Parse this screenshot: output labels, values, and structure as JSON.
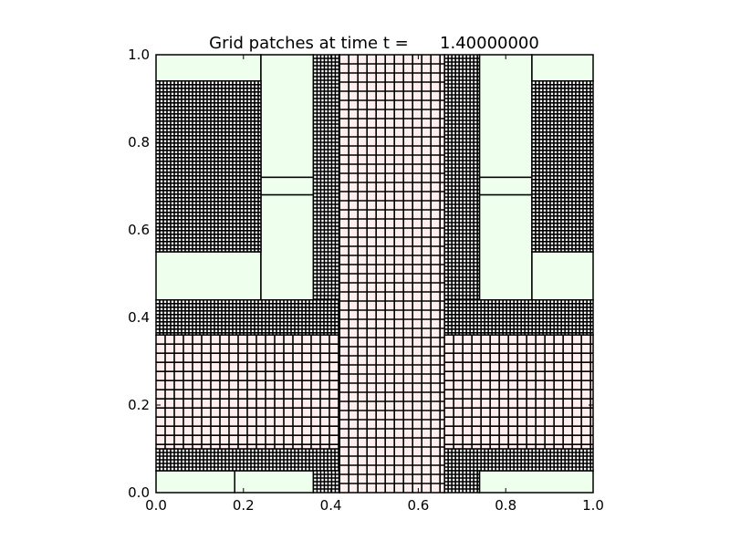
{
  "chart_data": {
    "type": "other",
    "title": "Grid patches at time t =      1.40000000",
    "xlabel": "",
    "ylabel": "",
    "xlim": [
      0.0,
      1.0
    ],
    "ylim": [
      0.0,
      1.0
    ],
    "xticks": [
      "0.0",
      "0.2",
      "0.4",
      "0.6",
      "0.8",
      "1.0"
    ],
    "yticks": [
      "0.0",
      "0.2",
      "0.4",
      "0.6",
      "0.8",
      "1.0"
    ],
    "grid": false,
    "colors": {
      "coarse_fill": "#eeffee",
      "medium_fill": "#ffffff",
      "fine_fill": "#ffeeee",
      "cell_line": "#000000"
    },
    "patches": [
      {
        "level": 1,
        "x0": 0.0,
        "x1": 0.24,
        "y0": 0.94,
        "y1": 1.0
      },
      {
        "level": 1,
        "x0": 0.0,
        "x1": 0.24,
        "y0": 0.44,
        "y1": 0.55
      },
      {
        "level": 1,
        "x0": 0.24,
        "x1": 0.36,
        "y0": 0.72,
        "y1": 1.0
      },
      {
        "level": 1,
        "x0": 0.24,
        "x1": 0.36,
        "y0": 0.68,
        "y1": 0.72
      },
      {
        "level": 1,
        "x0": 0.24,
        "x1": 0.36,
        "y0": 0.44,
        "y1": 0.68
      },
      {
        "level": 1,
        "x0": 0.74,
        "x1": 0.86,
        "y0": 0.72,
        "y1": 1.0
      },
      {
        "level": 1,
        "x0": 0.74,
        "x1": 0.86,
        "y0": 0.68,
        "y1": 0.72
      },
      {
        "level": 1,
        "x0": 0.74,
        "x1": 0.86,
        "y0": 0.44,
        "y1": 0.68
      },
      {
        "level": 1,
        "x0": 0.86,
        "x1": 1.0,
        "y0": 0.94,
        "y1": 1.0
      },
      {
        "level": 1,
        "x0": 0.86,
        "x1": 1.0,
        "y0": 0.44,
        "y1": 0.55
      },
      {
        "level": 1,
        "x0": 0.0,
        "x1": 0.18,
        "y0": 0.0,
        "y1": 0.05
      },
      {
        "level": 1,
        "x0": 0.18,
        "x1": 0.36,
        "y0": 0.0,
        "y1": 0.05
      },
      {
        "level": 1,
        "x0": 0.74,
        "x1": 1.0,
        "y0": 0.0,
        "y1": 0.05
      },
      {
        "level": 3,
        "x0": 0.0,
        "x1": 0.24,
        "y0": 0.55,
        "y1": 0.94
      },
      {
        "level": 3,
        "x0": 0.86,
        "x1": 1.0,
        "y0": 0.55,
        "y1": 0.94
      },
      {
        "level": 3,
        "x0": 0.36,
        "x1": 0.42,
        "y0": 0.44,
        "y1": 1.0
      },
      {
        "level": 3,
        "x0": 0.66,
        "x1": 0.74,
        "y0": 0.44,
        "y1": 1.0
      },
      {
        "level": 3,
        "x0": 0.0,
        "x1": 0.42,
        "y0": 0.36,
        "y1": 0.44
      },
      {
        "level": 3,
        "x0": 0.66,
        "x1": 1.0,
        "y0": 0.36,
        "y1": 0.44
      },
      {
        "level": 3,
        "x0": 0.0,
        "x1": 0.42,
        "y0": 0.05,
        "y1": 0.1
      },
      {
        "level": 3,
        "x0": 0.66,
        "x1": 1.0,
        "y0": 0.05,
        "y1": 0.1
      },
      {
        "level": 3,
        "x0": 0.36,
        "x1": 0.42,
        "y0": 0.0,
        "y1": 0.05
      },
      {
        "level": 3,
        "x0": 0.66,
        "x1": 0.74,
        "y0": 0.0,
        "y1": 0.05
      },
      {
        "level": 2,
        "x0": 0.42,
        "x1": 0.66,
        "y0": 0.0,
        "y1": 1.0
      },
      {
        "level": 2,
        "x0": 0.0,
        "x1": 0.42,
        "y0": 0.1,
        "y1": 0.36
      },
      {
        "level": 2,
        "x0": 0.66,
        "x1": 1.0,
        "y0": 0.1,
        "y1": 0.36
      }
    ]
  }
}
